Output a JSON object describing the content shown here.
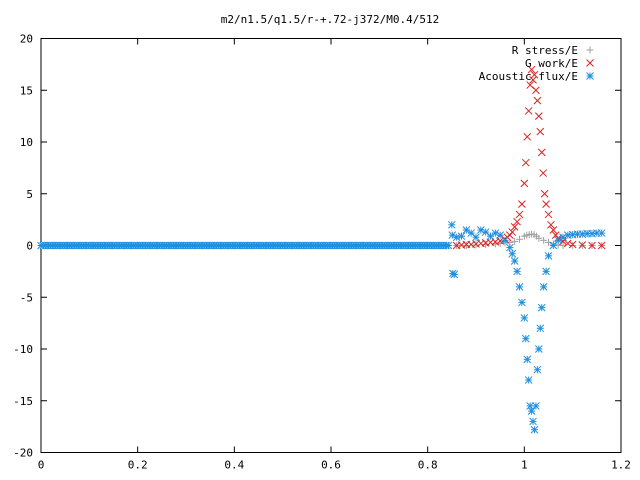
{
  "chart_data": {
    "type": "scatter",
    "title": "m2/n1.5/q1.5/r-+.72-j372/M0.4/512",
    "xlabel": "",
    "ylabel": "",
    "xlim": [
      0,
      1.2
    ],
    "ylim": [
      -20,
      20
    ],
    "x_ticks": [
      "0",
      "0.2",
      "0.4",
      "0.6",
      "0.8",
      "1",
      "1.2"
    ],
    "y_ticks": [
      "20",
      "15",
      "10",
      "5",
      "0",
      "-5",
      "-10",
      "-15",
      "-20"
    ],
    "grid": false,
    "legend_position": "top-right",
    "series": [
      {
        "name": "R stress/E",
        "marker": "plus",
        "color": "#a0a0a0",
        "points": [
          [
            0.86,
            0.0
          ],
          [
            0.88,
            0.0
          ],
          [
            0.9,
            0.05
          ],
          [
            0.92,
            0.1
          ],
          [
            0.94,
            0.15
          ],
          [
            0.95,
            0.2
          ],
          [
            0.96,
            0.25
          ],
          [
            0.97,
            0.3
          ],
          [
            0.98,
            0.4
          ],
          [
            0.99,
            0.6
          ],
          [
            1.0,
            0.9
          ],
          [
            1.005,
            1.0
          ],
          [
            1.01,
            1.05
          ],
          [
            1.015,
            1.1
          ],
          [
            1.02,
            1.05
          ],
          [
            1.025,
            0.9
          ],
          [
            1.03,
            0.7
          ],
          [
            1.04,
            0.5
          ],
          [
            1.05,
            0.3
          ],
          [
            1.06,
            0.15
          ],
          [
            1.07,
            0.05
          ],
          [
            1.08,
            0.0
          ],
          [
            1.1,
            0.0
          ],
          [
            1.12,
            0.0
          ],
          [
            1.14,
            0.0
          ],
          [
            1.16,
            0.0
          ]
        ]
      },
      {
        "name": "G work/E",
        "marker": "cross",
        "color": "#dd2222",
        "points": [
          [
            0.86,
            0.0
          ],
          [
            0.87,
            0.05
          ],
          [
            0.88,
            0.1
          ],
          [
            0.89,
            0.1
          ],
          [
            0.9,
            0.15
          ],
          [
            0.91,
            0.2
          ],
          [
            0.92,
            0.25
          ],
          [
            0.93,
            0.3
          ],
          [
            0.94,
            0.35
          ],
          [
            0.95,
            0.45
          ],
          [
            0.96,
            0.6
          ],
          [
            0.965,
            0.8
          ],
          [
            0.97,
            1.0
          ],
          [
            0.975,
            1.3
          ],
          [
            0.98,
            1.8
          ],
          [
            0.985,
            2.3
          ],
          [
            0.99,
            3.0
          ],
          [
            0.995,
            4.0
          ],
          [
            1.0,
            6.0
          ],
          [
            1.003,
            8.0
          ],
          [
            1.006,
            10.5
          ],
          [
            1.009,
            13.0
          ],
          [
            1.012,
            15.5
          ],
          [
            1.015,
            17.0
          ],
          [
            1.018,
            16.0
          ],
          [
            1.021,
            16.5
          ],
          [
            1.024,
            15.0
          ],
          [
            1.027,
            14.0
          ],
          [
            1.03,
            12.5
          ],
          [
            1.033,
            11.0
          ],
          [
            1.036,
            9.0
          ],
          [
            1.039,
            7.0
          ],
          [
            1.042,
            5.0
          ],
          [
            1.045,
            4.0
          ],
          [
            1.05,
            3.0
          ],
          [
            1.055,
            2.0
          ],
          [
            1.06,
            1.5
          ],
          [
            1.065,
            1.0
          ],
          [
            1.07,
            0.7
          ],
          [
            1.08,
            0.4
          ],
          [
            1.09,
            0.2
          ],
          [
            1.1,
            0.1
          ],
          [
            1.12,
            0.05
          ],
          [
            1.14,
            0.0
          ],
          [
            1.16,
            0.0
          ]
        ]
      },
      {
        "name": "Acoustic flux/E",
        "marker": "star",
        "color": "#1f8fdf",
        "points": [
          [
            0.85,
            2.0
          ],
          [
            0.851,
            1.0
          ],
          [
            0.852,
            -2.7
          ],
          [
            0.855,
            -2.8
          ],
          [
            0.86,
            0.8
          ],
          [
            0.87,
            0.9
          ],
          [
            0.88,
            1.5
          ],
          [
            0.89,
            1.2
          ],
          [
            0.9,
            0.8
          ],
          [
            0.91,
            1.5
          ],
          [
            0.92,
            1.3
          ],
          [
            0.93,
            0.9
          ],
          [
            0.94,
            1.2
          ],
          [
            0.95,
            1.0
          ],
          [
            0.96,
            0.5
          ],
          [
            0.97,
            -0.2
          ],
          [
            0.975,
            -0.8
          ],
          [
            0.98,
            -1.5
          ],
          [
            0.985,
            -2.5
          ],
          [
            0.99,
            -4.0
          ],
          [
            0.995,
            -5.5
          ],
          [
            1.0,
            -7.0
          ],
          [
            1.003,
            -9.0
          ],
          [
            1.006,
            -11.0
          ],
          [
            1.009,
            -13.0
          ],
          [
            1.012,
            -15.5
          ],
          [
            1.015,
            -16.0
          ],
          [
            1.018,
            -17.0
          ],
          [
            1.021,
            -17.8
          ],
          [
            1.024,
            -15.5
          ],
          [
            1.027,
            -12.0
          ],
          [
            1.03,
            -10.0
          ],
          [
            1.033,
            -8.0
          ],
          [
            1.036,
            -6.0
          ],
          [
            1.04,
            -4.0
          ],
          [
            1.045,
            -2.5
          ],
          [
            1.05,
            -1.0
          ],
          [
            1.06,
            0.0
          ],
          [
            1.07,
            0.5
          ],
          [
            1.08,
            0.8
          ],
          [
            1.09,
            1.0
          ],
          [
            1.1,
            1.05
          ],
          [
            1.11,
            1.1
          ],
          [
            1.12,
            1.1
          ],
          [
            1.13,
            1.15
          ],
          [
            1.14,
            1.15
          ],
          [
            1.15,
            1.2
          ],
          [
            1.16,
            1.2
          ]
        ]
      }
    ]
  }
}
